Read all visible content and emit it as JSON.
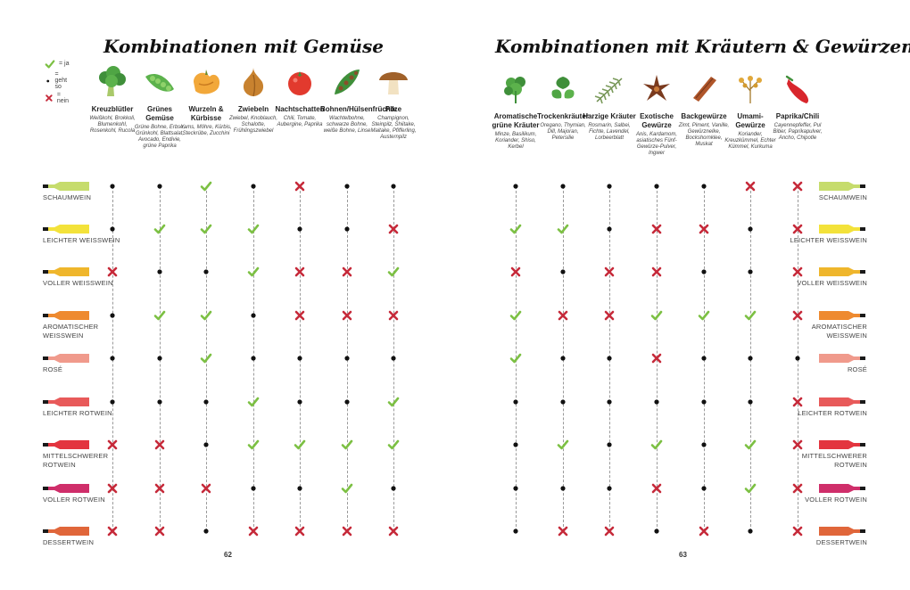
{
  "left": {
    "title": "Kombinationen mit Gemüse",
    "page_number": "62",
    "legend": [
      {
        "symbol": "check",
        "label": "= ja"
      },
      {
        "symbol": "dot",
        "label": "= geht so"
      },
      {
        "symbol": "cross",
        "label": "= nein"
      }
    ],
    "columns": [
      {
        "name": "Kreuzblütler",
        "examples": "Weißkohl, Brokkoli, Blumenkohl, Rosenkohl, Rucola",
        "icon": "broccoli-icon"
      },
      {
        "name": "Grünes Gemüse",
        "examples": "Grüne Bohne, Erbse, Grünkohl, Blattsalat, Avocado, Endivie, grüne Paprika",
        "icon": "pea-pod-icon"
      },
      {
        "name": "Wurzeln & Kürbisse",
        "examples": "Yams, Möhre, Kürbis, Steckrübe, Zucchini",
        "icon": "pumpkin-icon"
      },
      {
        "name": "Zwiebeln",
        "examples": "Zwiebel, Knoblauch, Schalotte, Frühlingszwiebel",
        "icon": "onion-icon"
      },
      {
        "name": "Nachtschatten",
        "examples": "Chili, Tomate, Aubergine, Paprika",
        "icon": "tomato-icon"
      },
      {
        "name": "Bohnen/Hülsenfrüchte",
        "examples": "Wachtelbohne, schwarze Bohne, weiße Bohne, Linse",
        "icon": "bean-pod-icon"
      },
      {
        "name": "Pilze",
        "examples": "Champignon, Steinpilz, Shiitake, Maitake, Pfifferling, Austernpilz",
        "icon": "mushroom-icon"
      }
    ],
    "grid": [
      [
        "dot",
        "dot",
        "check",
        "dot",
        "cross",
        "dot",
        "dot"
      ],
      [
        "dot",
        "check",
        "check",
        "check",
        "dot",
        "dot",
        "cross"
      ],
      [
        "cross",
        "dot",
        "dot",
        "check",
        "cross",
        "cross",
        "check"
      ],
      [
        "dot",
        "check",
        "check",
        "dot",
        "cross",
        "cross",
        "cross"
      ],
      [
        "dot",
        "dot",
        "check",
        "dot",
        "dot",
        "dot",
        "dot"
      ],
      [
        "dot",
        "dot",
        "dot",
        "check",
        "dot",
        "dot",
        "check"
      ],
      [
        "cross",
        "cross",
        "dot",
        "check",
        "check",
        "check",
        "check"
      ],
      [
        "cross",
        "cross",
        "cross",
        "dot",
        "dot",
        "check",
        "dot"
      ],
      [
        "cross",
        "cross",
        "dot",
        "cross",
        "cross",
        "cross",
        "cross"
      ]
    ]
  },
  "right": {
    "title": "Kombinationen mit Kräutern & Gewürzen",
    "page_number": "63",
    "columns": [
      {
        "name": "Aromatische grüne Kräuter",
        "examples": "Minze, Basilikum, Koriander, Shiso, Kerbel",
        "icon": "parsley-icon"
      },
      {
        "name": "Trockenkräuter",
        "examples": "Oregano, Thymian, Dill, Majoran, Petersilie",
        "icon": "basil-icon"
      },
      {
        "name": "Harzige Kräuter",
        "examples": "Rosmarin, Salbei, Fichte, Lavendel, Lorbeerblatt",
        "icon": "rosemary-icon"
      },
      {
        "name": "Exotische Gewürze",
        "examples": "Anis, Kardamom, asiatisches Fünf-Gewürze-Pulver, Ingwer",
        "icon": "star-anise-icon"
      },
      {
        "name": "Backgewürze",
        "examples": "Zimt, Piment, Vanille, Gewürznelke, Bockshornklee, Muskat",
        "icon": "cinnamon-icon"
      },
      {
        "name": "Umami-Gewürze",
        "examples": "Koriander, Kreuzkümmel, Echter Kümmel, Kurkuma",
        "icon": "coriander-seeds-icon"
      },
      {
        "name": "Paprika/Chili",
        "examples": "Cayennepfeffer, Pul Biber, Paprikapulver, Ancho, Chipotle",
        "icon": "chili-icon"
      }
    ],
    "grid": [
      [
        "dot",
        "dot",
        "dot",
        "dot",
        "dot",
        "cross",
        "cross"
      ],
      [
        "check",
        "check",
        "dot",
        "cross",
        "cross",
        "dot",
        "cross"
      ],
      [
        "cross",
        "dot",
        "cross",
        "cross",
        "dot",
        "dot",
        "cross"
      ],
      [
        "check",
        "cross",
        "cross",
        "check",
        "check",
        "check",
        "cross"
      ],
      [
        "check",
        "dot",
        "dot",
        "cross",
        "dot",
        "dot",
        "dot"
      ],
      [
        "dot",
        "dot",
        "dot",
        "dot",
        "dot",
        "dot",
        "cross"
      ],
      [
        "dot",
        "check",
        "dot",
        "check",
        "dot",
        "check",
        "cross"
      ],
      [
        "dot",
        "dot",
        "dot",
        "cross",
        "dot",
        "check",
        "cross"
      ],
      [
        "dot",
        "cross",
        "cross",
        "dot",
        "cross",
        "dot",
        "cross"
      ]
    ]
  },
  "wines": [
    {
      "label": "SCHAUMWEIN",
      "color": "#c6dc6c"
    },
    {
      "label": "LEICHTER WEISSWEIN",
      "color": "#f3e23a"
    },
    {
      "label": "VOLLER WEISSWEIN",
      "color": "#efb62c"
    },
    {
      "label": "AROMATISCHER WEISSWEIN",
      "color": "#ee8a30"
    },
    {
      "label": "ROSÉ",
      "color": "#f09a8c"
    },
    {
      "label": "LEICHTER ROTWEIN",
      "color": "#e85a5a"
    },
    {
      "label": "MITTELSCHWERER ROTWEIN",
      "color": "#e3353f"
    },
    {
      "label": "VOLLER ROTWEIN",
      "color": "#cf2e6a"
    },
    {
      "label": "DESSERTWEIN",
      "color": "#e0663a"
    }
  ],
  "colors": {
    "check": "#7cc043",
    "cross": "#c62a3a",
    "dot": "#111111"
  }
}
